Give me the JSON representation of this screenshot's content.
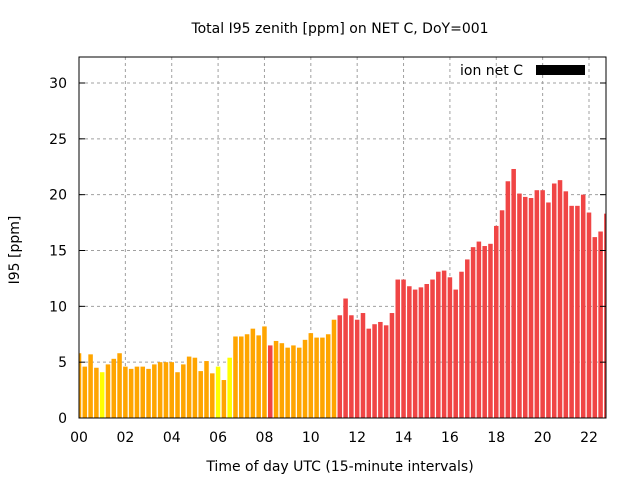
{
  "chart_data": {
    "type": "bar",
    "title": "Total I95 zenith [ppm] on NET C, DoY=001",
    "xlabel": "Time of day UTC (15-minute intervals)",
    "ylabel": "I95 [ppm]",
    "xlim": [
      0,
      22.75
    ],
    "ylim": [
      0,
      32.5
    ],
    "xticks": [
      0,
      2,
      4,
      6,
      8,
      10,
      12,
      14,
      16,
      18,
      20,
      22
    ],
    "xtick_labels": [
      "00",
      "02",
      "04",
      "06",
      "08",
      "10",
      "12",
      "14",
      "16",
      "18",
      "20",
      "22"
    ],
    "yticks": [
      0,
      5,
      10,
      15,
      20,
      25,
      30
    ],
    "ytick_labels": [
      "0",
      "5",
      "10",
      "15",
      "20",
      "25",
      "30"
    ],
    "grid": true,
    "legend": {
      "label": "ion net C",
      "placement": "top-right",
      "color": "#000000"
    },
    "interval_hours": 0.25,
    "colors": {
      "o": "#ffa500",
      "y": "#ffff00",
      "r": "#f04545"
    },
    "values": [
      5.8,
      4.6,
      5.7,
      4.5,
      4.1,
      4.8,
      5.3,
      5.8,
      4.6,
      4.4,
      4.6,
      4.6,
      4.4,
      4.8,
      5.0,
      5.0,
      5.0,
      4.1,
      4.8,
      5.5,
      5.4,
      4.2,
      5.1,
      4.0,
      4.6,
      3.4,
      5.4,
      7.3,
      7.3,
      7.5,
      8.0,
      7.4,
      8.2,
      6.5,
      6.9,
      6.7,
      6.3,
      6.5,
      6.3,
      7.0,
      7.6,
      7.2,
      7.2,
      7.5,
      8.8,
      9.2,
      10.7,
      9.2,
      8.8,
      9.4,
      8.0,
      8.4,
      8.6,
      8.3,
      9.4,
      12.4,
      12.4,
      11.8,
      11.5,
      11.7,
      12.0,
      12.4,
      13.1,
      13.2,
      12.6,
      11.5,
      13.1,
      14.2,
      15.3,
      15.8,
      15.4,
      15.6,
      17.2,
      18.6,
      21.2,
      22.3,
      20.1,
      19.8,
      19.7,
      20.4,
      20.4,
      19.3,
      21.0,
      21.3,
      20.3,
      19.0,
      19.0,
      20.0,
      18.4,
      16.2,
      16.7,
      18.3
    ],
    "bar_colors": "ooooyoooooooooooooooooooyoyoooooorooooooooooorrrrrrrrrrrrrrrrrrrrrrrrrrrrrrrrrrrrrrrrrrrrrrrr"
  }
}
